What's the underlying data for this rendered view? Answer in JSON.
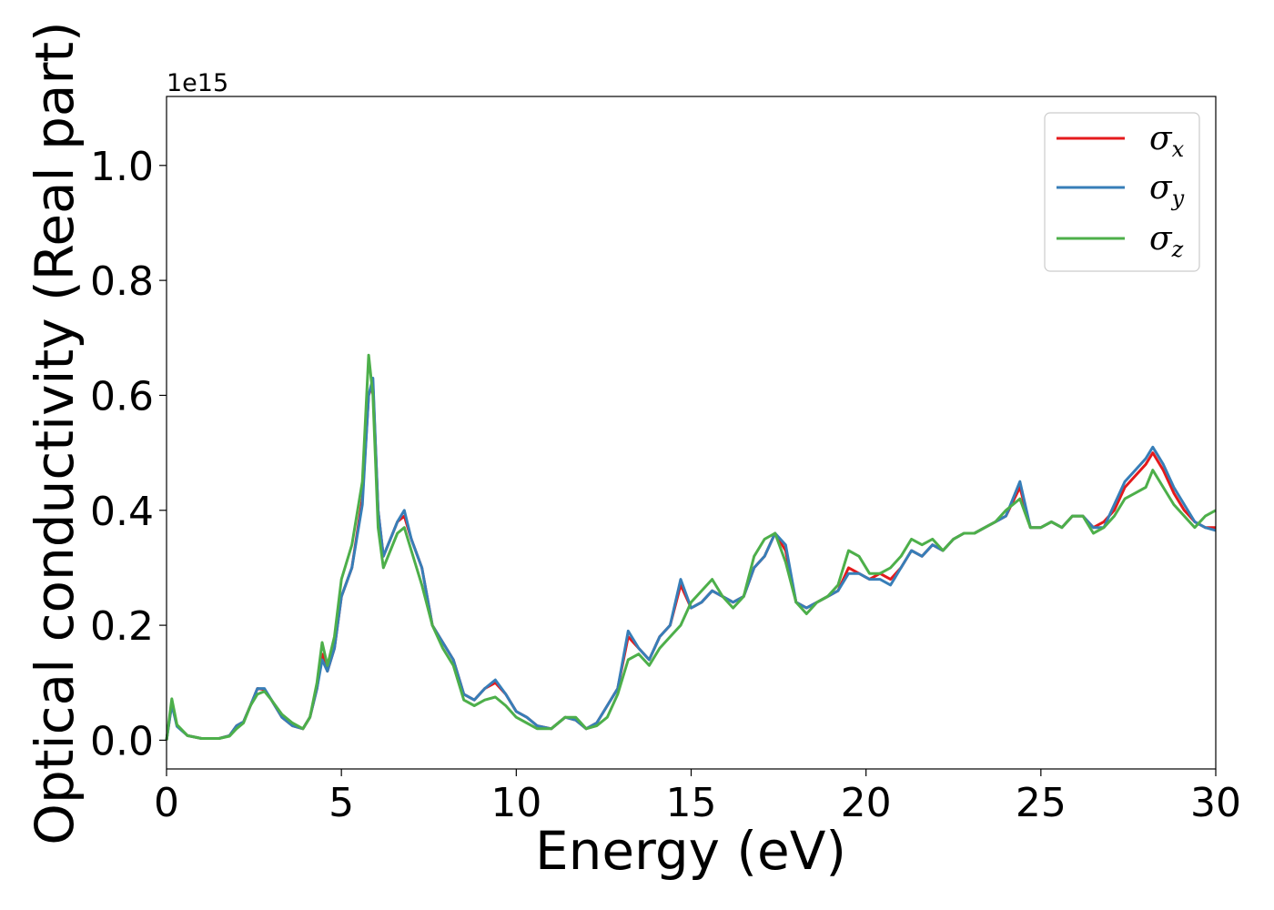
{
  "chart_data": {
    "type": "line",
    "xlabel": "Energy (eV)",
    "ylabel": "Optical conductivity (Real part)",
    "y_offset_text": "1e15",
    "xlim": [
      0,
      30
    ],
    "ylim": [
      -0.05,
      1.12
    ],
    "x_ticks": [
      0,
      5,
      10,
      15,
      20,
      25,
      30
    ],
    "x_tick_labels": [
      "0",
      "5",
      "10",
      "15",
      "20",
      "25",
      "30"
    ],
    "y_ticks": [
      0.0,
      0.2,
      0.4,
      0.6,
      0.8,
      1.0
    ],
    "y_tick_labels": [
      "0.0",
      "0.2",
      "0.4",
      "0.6",
      "0.8",
      "1.0"
    ],
    "grid": false,
    "legend_position": "top-right",
    "x": [
      0,
      0.15,
      0.3,
      0.6,
      1.0,
      1.5,
      1.8,
      2.0,
      2.2,
      2.4,
      2.6,
      2.8,
      3.0,
      3.3,
      3.6,
      3.9,
      4.1,
      4.3,
      4.45,
      4.6,
      4.8,
      5.0,
      5.3,
      5.6,
      5.78,
      5.9,
      6.05,
      6.2,
      6.4,
      6.6,
      6.8,
      7.0,
      7.3,
      7.6,
      7.9,
      8.2,
      8.5,
      8.8,
      9.1,
      9.4,
      9.7,
      10.0,
      10.3,
      10.6,
      11.0,
      11.4,
      11.7,
      12.0,
      12.3,
      12.6,
      12.9,
      13.2,
      13.5,
      13.8,
      14.1,
      14.4,
      14.7,
      15.0,
      15.3,
      15.6,
      15.9,
      16.2,
      16.5,
      16.8,
      17.1,
      17.4,
      17.7,
      18.0,
      18.3,
      18.6,
      18.9,
      19.2,
      19.5,
      19.8,
      20.1,
      20.4,
      20.7,
      21.0,
      21.3,
      21.6,
      21.9,
      22.2,
      22.5,
      22.8,
      23.1,
      23.4,
      23.7,
      24.0,
      24.4,
      24.7,
      25.0,
      25.3,
      25.6,
      25.9,
      26.2,
      26.5,
      26.8,
      27.1,
      27.4,
      27.7,
      28.0,
      28.2,
      28.5,
      28.8,
      29.1,
      29.4,
      29.7,
      30.0
    ],
    "series": [
      {
        "name": "σx",
        "color": "#e41a1c",
        "values": [
          0.0,
          0.065,
          0.025,
          0.008,
          0.003,
          0.003,
          0.008,
          0.025,
          0.032,
          0.06,
          0.09,
          0.088,
          0.07,
          0.04,
          0.025,
          0.02,
          0.04,
          0.09,
          0.15,
          0.12,
          0.16,
          0.25,
          0.3,
          0.42,
          0.6,
          0.62,
          0.4,
          0.32,
          0.35,
          0.38,
          0.39,
          0.35,
          0.3,
          0.2,
          0.17,
          0.14,
          0.08,
          0.07,
          0.09,
          0.1,
          0.08,
          0.05,
          0.04,
          0.025,
          0.02,
          0.04,
          0.035,
          0.02,
          0.03,
          0.06,
          0.09,
          0.18,
          0.16,
          0.14,
          0.18,
          0.2,
          0.27,
          0.23,
          0.24,
          0.26,
          0.25,
          0.24,
          0.25,
          0.3,
          0.32,
          0.36,
          0.33,
          0.24,
          0.23,
          0.24,
          0.25,
          0.26,
          0.3,
          0.29,
          0.28,
          0.29,
          0.28,
          0.3,
          0.33,
          0.32,
          0.34,
          0.33,
          0.35,
          0.36,
          0.36,
          0.37,
          0.38,
          0.39,
          0.44,
          0.37,
          0.37,
          0.38,
          0.37,
          0.39,
          0.39,
          0.37,
          0.38,
          0.4,
          0.44,
          0.46,
          0.48,
          0.5,
          0.47,
          0.43,
          0.4,
          0.38,
          0.37,
          0.37
        ]
      },
      {
        "name": "σy",
        "color": "#377eb8",
        "values": [
          0.0,
          0.062,
          0.024,
          0.008,
          0.003,
          0.003,
          0.008,
          0.025,
          0.032,
          0.06,
          0.09,
          0.09,
          0.07,
          0.04,
          0.025,
          0.02,
          0.04,
          0.09,
          0.14,
          0.12,
          0.16,
          0.25,
          0.3,
          0.41,
          0.6,
          0.63,
          0.4,
          0.32,
          0.35,
          0.38,
          0.4,
          0.35,
          0.3,
          0.2,
          0.17,
          0.14,
          0.08,
          0.07,
          0.09,
          0.105,
          0.08,
          0.05,
          0.04,
          0.025,
          0.02,
          0.04,
          0.035,
          0.02,
          0.03,
          0.06,
          0.09,
          0.19,
          0.16,
          0.14,
          0.18,
          0.2,
          0.28,
          0.23,
          0.24,
          0.26,
          0.25,
          0.24,
          0.25,
          0.3,
          0.32,
          0.36,
          0.34,
          0.24,
          0.23,
          0.24,
          0.25,
          0.26,
          0.29,
          0.29,
          0.28,
          0.28,
          0.27,
          0.3,
          0.33,
          0.32,
          0.34,
          0.33,
          0.35,
          0.36,
          0.36,
          0.37,
          0.38,
          0.39,
          0.45,
          0.37,
          0.37,
          0.38,
          0.37,
          0.39,
          0.39,
          0.37,
          0.37,
          0.41,
          0.45,
          0.47,
          0.49,
          0.51,
          0.48,
          0.44,
          0.41,
          0.38,
          0.37,
          0.365
        ]
      },
      {
        "name": "σz",
        "color": "#4daf4a",
        "values": [
          0.0,
          0.072,
          0.027,
          0.008,
          0.003,
          0.003,
          0.007,
          0.02,
          0.03,
          0.06,
          0.08,
          0.085,
          0.07,
          0.045,
          0.03,
          0.02,
          0.04,
          0.1,
          0.17,
          0.13,
          0.18,
          0.28,
          0.34,
          0.45,
          0.67,
          0.6,
          0.37,
          0.3,
          0.33,
          0.36,
          0.37,
          0.33,
          0.27,
          0.2,
          0.16,
          0.13,
          0.07,
          0.06,
          0.07,
          0.075,
          0.06,
          0.04,
          0.03,
          0.02,
          0.02,
          0.04,
          0.04,
          0.02,
          0.025,
          0.04,
          0.08,
          0.14,
          0.15,
          0.13,
          0.16,
          0.18,
          0.2,
          0.24,
          0.26,
          0.28,
          0.25,
          0.23,
          0.25,
          0.32,
          0.35,
          0.36,
          0.31,
          0.24,
          0.22,
          0.24,
          0.25,
          0.27,
          0.33,
          0.32,
          0.29,
          0.29,
          0.3,
          0.32,
          0.35,
          0.34,
          0.35,
          0.33,
          0.35,
          0.36,
          0.36,
          0.37,
          0.38,
          0.4,
          0.42,
          0.37,
          0.37,
          0.38,
          0.37,
          0.39,
          0.39,
          0.36,
          0.37,
          0.39,
          0.42,
          0.43,
          0.44,
          0.47,
          0.44,
          0.41,
          0.39,
          0.37,
          0.39,
          0.4
        ]
      }
    ]
  }
}
